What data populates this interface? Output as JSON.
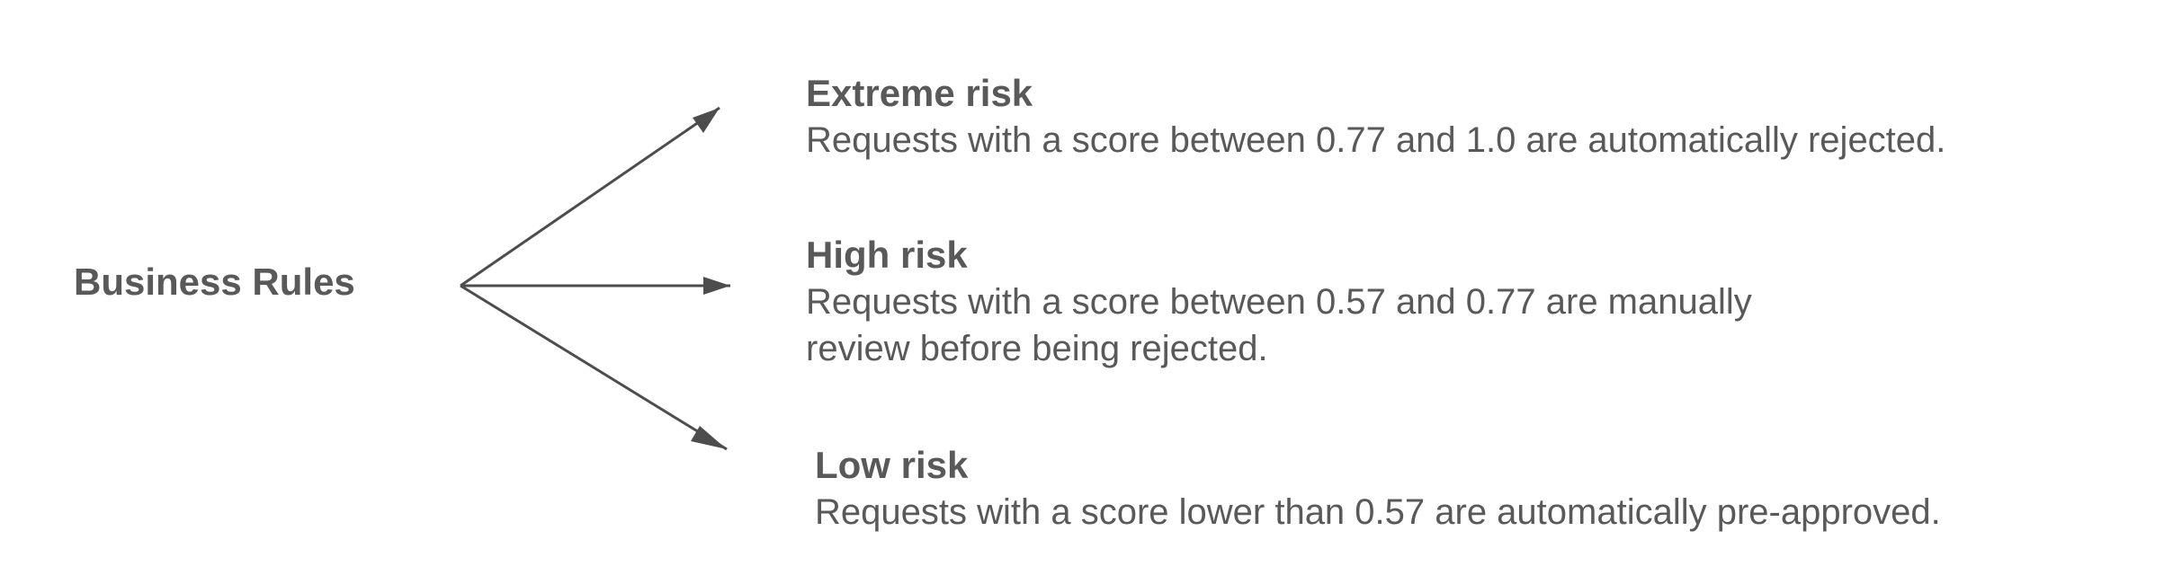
{
  "diagram": {
    "root": {
      "label": "Business Rules"
    },
    "rules": [
      {
        "title": "Extreme risk",
        "description": "Requests with a score between 0.77 and 1.0 are automatically rejected."
      },
      {
        "title": "High risk",
        "description": "Requests with a score between 0.57 and 0.77 are manually\nreview before being rejected."
      },
      {
        "title": "Low risk",
        "description": "Requests with a score lower than 0.57 are automatically pre-approved."
      }
    ],
    "colors": {
      "text": "#595959",
      "arrow": "#4d4d4d"
    }
  }
}
